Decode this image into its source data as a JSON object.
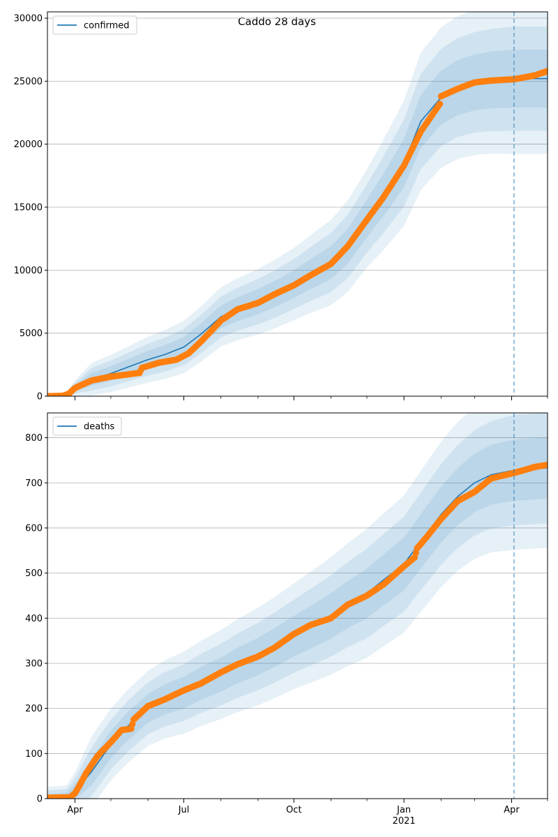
{
  "title": "Caddo 28 days",
  "colors": {
    "model_line": "#1f77b4",
    "band": "#1f77b4",
    "observed": "#ff7f0e",
    "cutoff_line": "#1f77b4",
    "grid": "#b0b0b0"
  },
  "x_axis": {
    "ticks": [
      {
        "date": "2020-04-01",
        "label": "Apr",
        "sublabel": ""
      },
      {
        "date": "2020-07-01",
        "label": "Jul",
        "sublabel": ""
      },
      {
        "date": "2020-10-01",
        "label": "Oct",
        "sublabel": ""
      },
      {
        "date": "2021-01-01",
        "label": "Jan",
        "sublabel": "2021"
      },
      {
        "date": "2021-04-01",
        "label": "Apr",
        "sublabel": ""
      }
    ],
    "minor_ticks": [
      "2020-05-01",
      "2020-06-01",
      "2020-08-01",
      "2020-09-01",
      "2020-11-01",
      "2020-12-01",
      "2021-02-01",
      "2021-03-01",
      "2021-05-01"
    ],
    "range": [
      "2020-03-09",
      "2021-05-01"
    ],
    "cutoff_date": "2021-04-03"
  },
  "chart_data": [
    {
      "type": "line",
      "legend": "confirmed",
      "legend_position": "upper-left",
      "grid": "horizontal",
      "ylim": [
        0,
        30500
      ],
      "yticks": [
        0,
        5000,
        10000,
        15000,
        20000,
        25000,
        30000
      ],
      "model_points": [
        [
          "2020-03-09",
          0
        ],
        [
          "2020-03-25",
          80
        ],
        [
          "2020-04-01",
          650
        ],
        [
          "2020-04-15",
          1350
        ],
        [
          "2020-05-01",
          1800
        ],
        [
          "2020-05-15",
          2300
        ],
        [
          "2020-06-01",
          2900
        ],
        [
          "2020-06-15",
          3300
        ],
        [
          "2020-07-01",
          3900
        ],
        [
          "2020-07-15",
          4900
        ],
        [
          "2020-08-01",
          6300
        ],
        [
          "2020-08-15",
          6900
        ],
        [
          "2020-09-01",
          7500
        ],
        [
          "2020-09-15",
          8100
        ],
        [
          "2020-10-01",
          8900
        ],
        [
          "2020-10-15",
          9700
        ],
        [
          "2020-11-01",
          10600
        ],
        [
          "2020-11-15",
          11900
        ],
        [
          "2020-12-01",
          14100
        ],
        [
          "2020-12-15",
          16000
        ],
        [
          "2021-01-01",
          18500
        ],
        [
          "2021-01-15",
          21800
        ],
        [
          "2021-02-01",
          23700
        ],
        [
          "2021-02-15",
          24500
        ],
        [
          "2021-03-01",
          24900
        ],
        [
          "2021-03-15",
          25100
        ],
        [
          "2021-04-03",
          25200
        ],
        [
          "2021-05-01",
          25200
        ]
      ],
      "band_widths": [
        [
          "2020-03-09",
          0
        ],
        [
          "2020-03-25",
          100
        ],
        [
          "2020-04-15",
          500
        ],
        [
          "2020-06-01",
          700
        ],
        [
          "2020-08-01",
          900
        ],
        [
          "2020-10-01",
          1100
        ],
        [
          "2020-12-01",
          1500
        ],
        [
          "2021-01-15",
          2100
        ],
        [
          "2021-04-03",
          2300
        ],
        [
          "2021-05-01",
          2300
        ]
      ],
      "band_levels": [
        1.0,
        1.8,
        2.6
      ],
      "observed_points": [
        [
          "2020-03-09",
          0
        ],
        [
          "2020-03-22",
          30
        ],
        [
          "2020-03-27",
          200
        ],
        [
          "2020-04-01",
          650
        ],
        [
          "2020-04-15",
          1250
        ],
        [
          "2020-05-01",
          1550
        ],
        [
          "2020-05-25",
          1850
        ],
        [
          "2020-05-27",
          2250
        ],
        [
          "2020-06-10",
          2650
        ],
        [
          "2020-06-25",
          2900
        ],
        [
          "2020-07-05",
          3400
        ],
        [
          "2020-07-15",
          4300
        ],
        [
          "2020-08-01",
          6000
        ],
        [
          "2020-08-15",
          6900
        ],
        [
          "2020-09-01",
          7400
        ],
        [
          "2020-09-15",
          8100
        ],
        [
          "2020-10-01",
          8800
        ],
        [
          "2020-10-15",
          9600
        ],
        [
          "2020-11-01",
          10500
        ],
        [
          "2020-11-15",
          11900
        ],
        [
          "2020-12-01",
          14000
        ],
        [
          "2020-12-15",
          15800
        ],
        [
          "2021-01-01",
          18300
        ],
        [
          "2021-01-15",
          21000
        ],
        [
          "2021-01-31",
          23200
        ],
        [
          "2021-02-01",
          23800
        ],
        [
          "2021-02-15",
          24400
        ],
        [
          "2021-03-01",
          24900
        ],
        [
          "2021-03-15",
          25050
        ],
        [
          "2021-04-03",
          25150
        ],
        [
          "2021-04-20",
          25450
        ],
        [
          "2021-05-01",
          25800
        ]
      ]
    },
    {
      "type": "line",
      "legend": "deaths",
      "legend_position": "upper-left",
      "grid": "horizontal",
      "ylim": [
        0,
        855
      ],
      "yticks": [
        0,
        100,
        200,
        300,
        400,
        500,
        600,
        700,
        800
      ],
      "model_points": [
        [
          "2020-03-09",
          0
        ],
        [
          "2020-03-25",
          3
        ],
        [
          "2020-04-01",
          15
        ],
        [
          "2020-04-15",
          60
        ],
        [
          "2020-05-01",
          120
        ],
        [
          "2020-05-15",
          160
        ],
        [
          "2020-06-01",
          200
        ],
        [
          "2020-06-15",
          220
        ],
        [
          "2020-07-01",
          235
        ],
        [
          "2020-07-15",
          255
        ],
        [
          "2020-08-01",
          275
        ],
        [
          "2020-08-15",
          295
        ],
        [
          "2020-09-01",
          315
        ],
        [
          "2020-09-15",
          335
        ],
        [
          "2020-10-01",
          360
        ],
        [
          "2020-10-15",
          380
        ],
        [
          "2020-11-01",
          405
        ],
        [
          "2020-11-15",
          430
        ],
        [
          "2020-12-01",
          455
        ],
        [
          "2020-12-15",
          485
        ],
        [
          "2021-01-01",
          520
        ],
        [
          "2021-01-15",
          570
        ],
        [
          "2021-02-01",
          630
        ],
        [
          "2021-02-15",
          670
        ],
        [
          "2021-03-01",
          700
        ],
        [
          "2021-03-15",
          718
        ],
        [
          "2021-04-03",
          728
        ],
        [
          "2021-05-01",
          733
        ]
      ],
      "band_widths": [
        [
          "2020-03-09",
          10
        ],
        [
          "2020-03-25",
          10
        ],
        [
          "2020-04-15",
          30
        ],
        [
          "2020-06-01",
          32
        ],
        [
          "2020-08-01",
          38
        ],
        [
          "2020-10-01",
          45
        ],
        [
          "2020-12-01",
          55
        ],
        [
          "2021-02-01",
          62
        ],
        [
          "2021-04-03",
          68
        ],
        [
          "2021-05-01",
          68
        ]
      ],
      "band_levels": [
        1.0,
        1.8,
        2.6
      ],
      "observed_points": [
        [
          "2020-03-09",
          2
        ],
        [
          "2020-03-28",
          3
        ],
        [
          "2020-04-01",
          12
        ],
        [
          "2020-04-05",
          30
        ],
        [
          "2020-04-10",
          55
        ],
        [
          "2020-04-20",
          95
        ],
        [
          "2020-05-01",
          125
        ],
        [
          "2020-05-10",
          152
        ],
        [
          "2020-05-18",
          155
        ],
        [
          "2020-05-20",
          175
        ],
        [
          "2020-06-01",
          205
        ],
        [
          "2020-06-15",
          220
        ],
        [
          "2020-07-01",
          240
        ],
        [
          "2020-07-15",
          255
        ],
        [
          "2020-08-01",
          280
        ],
        [
          "2020-08-15",
          298
        ],
        [
          "2020-09-01",
          315
        ],
        [
          "2020-09-15",
          335
        ],
        [
          "2020-10-01",
          365
        ],
        [
          "2020-10-15",
          385
        ],
        [
          "2020-11-01",
          400
        ],
        [
          "2020-11-15",
          430
        ],
        [
          "2020-12-01",
          450
        ],
        [
          "2020-12-15",
          475
        ],
        [
          "2021-01-01",
          515
        ],
        [
          "2021-01-10",
          535
        ],
        [
          "2021-01-12",
          555
        ],
        [
          "2021-01-20",
          580
        ],
        [
          "2021-02-01",
          620
        ],
        [
          "2021-02-15",
          660
        ],
        [
          "2021-03-01",
          680
        ],
        [
          "2021-03-15",
          710
        ],
        [
          "2021-04-03",
          722
        ],
        [
          "2021-04-20",
          735
        ],
        [
          "2021-05-01",
          740
        ]
      ]
    }
  ]
}
